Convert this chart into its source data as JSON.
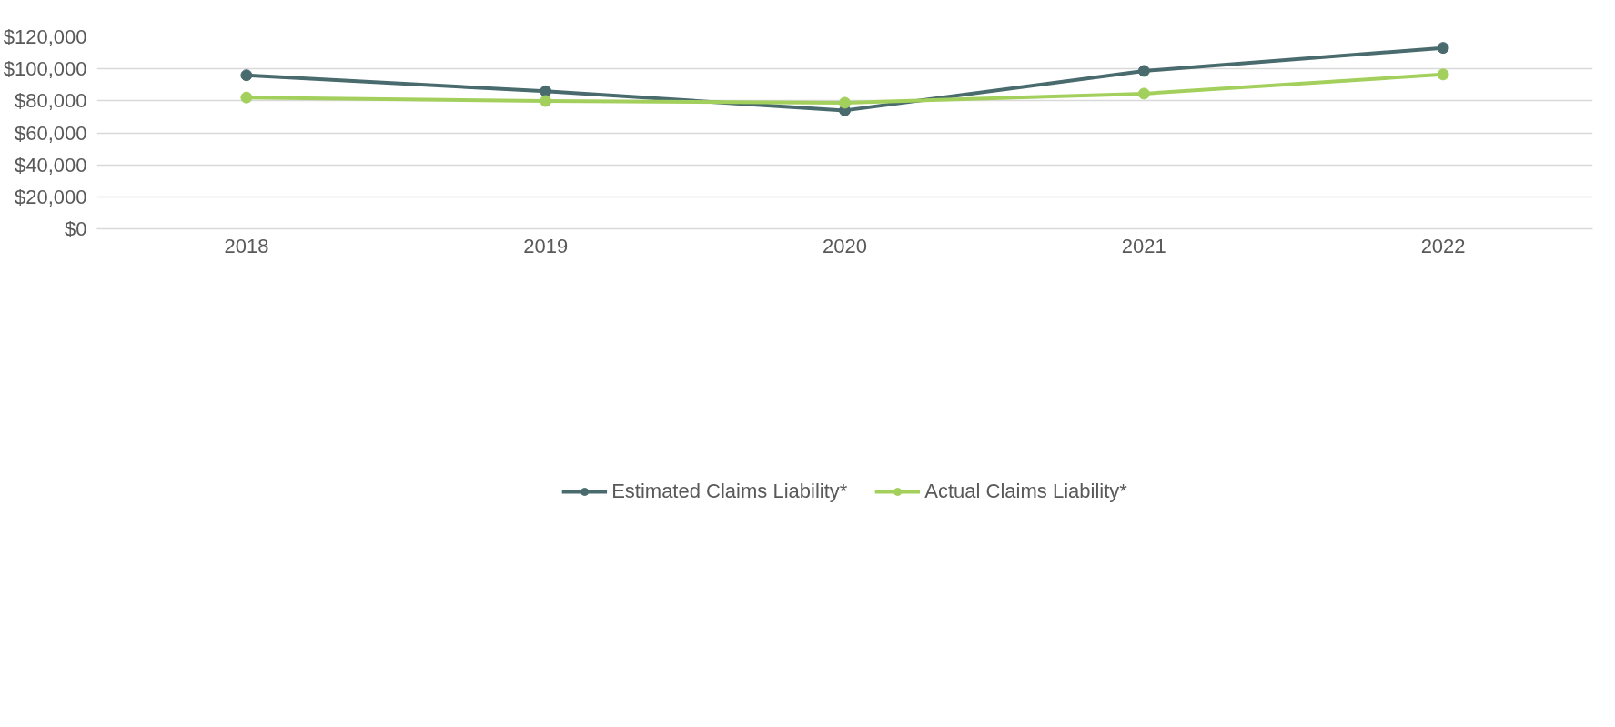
{
  "chart_data": {
    "type": "line",
    "categories": [
      "2018",
      "2019",
      "2020",
      "2021",
      "2022"
    ],
    "series": [
      {
        "name": "Estimated Claims Liability*",
        "color": "#4a6b6e",
        "values": [
          96000,
          86000,
          74000,
          98700,
          113100
        ]
      },
      {
        "name": "Actual Claims Liability*",
        "color": "#a3d05c",
        "values": [
          82100,
          79900,
          78800,
          84500,
          96500
        ]
      }
    ],
    "ylim": [
      0,
      120000
    ],
    "yticks": [
      {
        "value": 0,
        "label": "$0"
      },
      {
        "value": 20000,
        "label": "$20,000"
      },
      {
        "value": 40000,
        "label": "$40,000"
      },
      {
        "value": 60000,
        "label": "$60,000"
      },
      {
        "value": 80000,
        "label": "$80,000"
      },
      {
        "value": 100000,
        "label": "$100,000"
      },
      {
        "value": 120000,
        "label": "$120,000"
      }
    ],
    "grid": "y",
    "legend": "bottom",
    "marker": "circle",
    "line_style": "solid"
  }
}
